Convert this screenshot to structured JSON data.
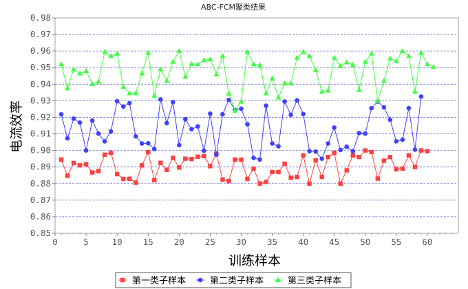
{
  "chart_data": {
    "type": "line",
    "title": "ABC-FCM聚类结果",
    "xlabel": "训练样本",
    "ylabel": "电流效率",
    "xlim": [
      0,
      65
    ],
    "ylim": [
      0.85,
      0.98
    ],
    "xticks": [
      0,
      5,
      10,
      15,
      20,
      25,
      30,
      35,
      40,
      45,
      50,
      55,
      60
    ],
    "yticks": [
      0.85,
      0.86,
      0.87,
      0.88,
      0.89,
      0.9,
      0.91,
      0.92,
      0.93,
      0.94,
      0.95,
      0.96,
      0.97,
      0.98
    ],
    "ytick_labels": [
      "0.85",
      "0.86",
      "0.87",
      "0.88",
      "0.89",
      "0.90",
      "0.91",
      "0.92",
      "0.93",
      "0.94",
      "0.95",
      "0.96",
      "0.97",
      "0.98"
    ],
    "grid": "horizontal dashed",
    "legend_position": "bottom-center",
    "series": [
      {
        "name": "第一类子样本",
        "color": "#ff4040",
        "marker": "square",
        "x": [
          1,
          2,
          3,
          4,
          5,
          6,
          7,
          8,
          9,
          10,
          11,
          12,
          13,
          14,
          15,
          16,
          17,
          18,
          19,
          20,
          21,
          22,
          23,
          24,
          25,
          26,
          27,
          28,
          29,
          30,
          31,
          32,
          33,
          34,
          35,
          36,
          37,
          38,
          39,
          40,
          41,
          42,
          43,
          44,
          45,
          46,
          47,
          48,
          49,
          50,
          51,
          52,
          53,
          54,
          55,
          56,
          57,
          58,
          59,
          60
        ],
        "values": [
          0.8945,
          0.8847,
          0.8924,
          0.891,
          0.8917,
          0.8867,
          0.8875,
          0.8974,
          0.8985,
          0.8857,
          0.8828,
          0.8829,
          0.8805,
          0.891,
          0.899,
          0.882,
          0.8925,
          0.8883,
          0.8955,
          0.8897,
          0.895,
          0.8948,
          0.8962,
          0.8966,
          0.8905,
          0.898,
          0.8824,
          0.8815,
          0.8945,
          0.8944,
          0.8828,
          0.889,
          0.88,
          0.881,
          0.887,
          0.887,
          0.892,
          0.8835,
          0.884,
          0.897,
          0.88,
          0.894,
          0.884,
          0.896,
          0.8985,
          0.88,
          0.888,
          0.897,
          0.896,
          0.9,
          0.899,
          0.883,
          0.8938,
          0.896,
          0.8886,
          0.889,
          0.897,
          0.89,
          0.9,
          0.8995
        ]
      },
      {
        "name": "第二类子样本",
        "color": "#4040ff",
        "marker": "circle",
        "x": [
          1,
          2,
          3,
          4,
          5,
          6,
          7,
          8,
          9,
          10,
          11,
          12,
          13,
          14,
          15,
          16,
          17,
          18,
          19,
          20,
          21,
          22,
          23,
          24,
          25,
          26,
          27,
          28,
          29,
          30,
          31,
          32,
          33,
          34,
          35,
          36,
          37,
          38,
          39,
          40,
          41,
          42,
          43,
          44,
          45,
          46,
          47,
          48,
          49,
          50,
          51,
          52,
          53,
          54,
          55,
          56,
          57,
          58,
          59
        ],
        "values": [
          0.9218,
          0.9073,
          0.9192,
          0.9168,
          0.9,
          0.918,
          0.9102,
          0.9055,
          0.9115,
          0.9297,
          0.9265,
          0.9285,
          0.9085,
          0.9042,
          0.9043,
          0.9008,
          0.9308,
          0.9165,
          0.9292,
          0.9032,
          0.9188,
          0.9128,
          0.9145,
          0.8998,
          0.9222,
          0.8975,
          0.9218,
          0.9305,
          0.9245,
          0.9252,
          0.9158,
          0.8955,
          0.8945,
          0.927,
          0.9042,
          0.9025,
          0.9295,
          0.9215,
          0.9302,
          0.922,
          0.8995,
          0.8993,
          0.895,
          0.9042,
          0.9138,
          0.9003,
          0.9022,
          0.8995,
          0.9105,
          0.9102,
          0.9255,
          0.9295,
          0.926,
          0.9185,
          0.9055,
          0.9065,
          0.9255,
          0.9005,
          0.9325
        ]
      },
      {
        "name": "第三类子样本",
        "color": "#40ff40",
        "marker": "triangle",
        "x": [
          1,
          2,
          3,
          4,
          5,
          6,
          7,
          8,
          9,
          10,
          11,
          12,
          13,
          14,
          15,
          16,
          17,
          18,
          19,
          20,
          21,
          22,
          23,
          24,
          25,
          26,
          27,
          28,
          29,
          30,
          31,
          32,
          33,
          34,
          35,
          36,
          37,
          38,
          39,
          40,
          41,
          42,
          43,
          44,
          45,
          46,
          47,
          48,
          49,
          50,
          51,
          52,
          53,
          54,
          55,
          56,
          57,
          58,
          59,
          60,
          61
        ],
        "values": [
          0.952,
          0.9375,
          0.949,
          0.9465,
          0.948,
          0.94,
          0.9415,
          0.9595,
          0.957,
          0.9585,
          0.9383,
          0.9345,
          0.9345,
          0.9465,
          0.959,
          0.933,
          0.949,
          0.942,
          0.9535,
          0.96,
          0.9445,
          0.9522,
          0.952,
          0.9545,
          0.955,
          0.946,
          0.957,
          0.9343,
          0.924,
          0.9295,
          0.9595,
          0.952,
          0.9515,
          0.9345,
          0.9435,
          0.932,
          0.9405,
          0.9405,
          0.956,
          0.9595,
          0.957,
          0.9485,
          0.9355,
          0.9362,
          0.956,
          0.951,
          0.9532,
          0.9517,
          0.9365,
          0.9535,
          0.9585,
          0.93,
          0.942,
          0.9555,
          0.954,
          0.96,
          0.957,
          0.9355,
          0.959,
          0.952,
          0.9505
        ]
      }
    ]
  }
}
